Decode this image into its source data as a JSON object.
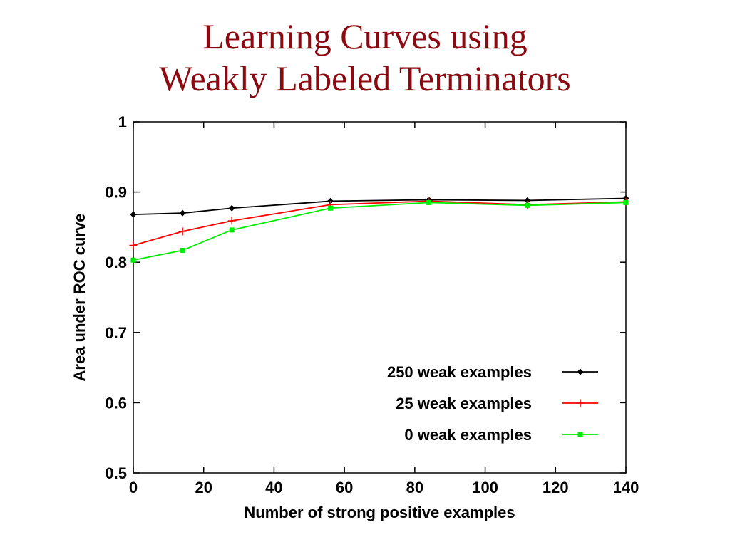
{
  "slide": {
    "title_line1": "Learning Curves using",
    "title_line2": "Weakly Labeled Terminators",
    "title_color": "#8b0a12"
  },
  "chart_data": {
    "type": "line",
    "title": "",
    "xlabel": "Number of strong positive examples",
    "ylabel": "Area under ROC curve",
    "xlim": [
      0,
      140
    ],
    "ylim": [
      0.5,
      1
    ],
    "xticks": [
      0,
      20,
      40,
      60,
      80,
      100,
      120,
      140
    ],
    "xtick_labels": [
      "0",
      "20",
      "40",
      "60",
      "80",
      "100",
      "120",
      "140"
    ],
    "yticks": [
      0.5,
      0.6,
      0.7,
      0.8,
      0.9,
      1
    ],
    "ytick_labels": [
      "0.5",
      "0.6",
      "0.7",
      "0.8",
      "0.9",
      "1"
    ],
    "grid": false,
    "legend_position": "bottom-right",
    "x": [
      0,
      14,
      28,
      56,
      84,
      112,
      140
    ],
    "series": [
      {
        "name": "250 weak examples",
        "color": "#000000",
        "marker": "diamond",
        "values": [
          0.868,
          0.87,
          0.877,
          0.887,
          0.889,
          0.888,
          0.891
        ]
      },
      {
        "name": "25 weak examples",
        "color": "#ff0000",
        "marker": "plus",
        "values": [
          0.824,
          0.844,
          0.859,
          0.882,
          0.887,
          0.882,
          0.886
        ]
      },
      {
        "name": "0 weak examples",
        "color": "#00ee00",
        "marker": "square",
        "values": [
          0.803,
          0.817,
          0.846,
          0.877,
          0.885,
          0.881,
          0.885
        ]
      }
    ]
  }
}
